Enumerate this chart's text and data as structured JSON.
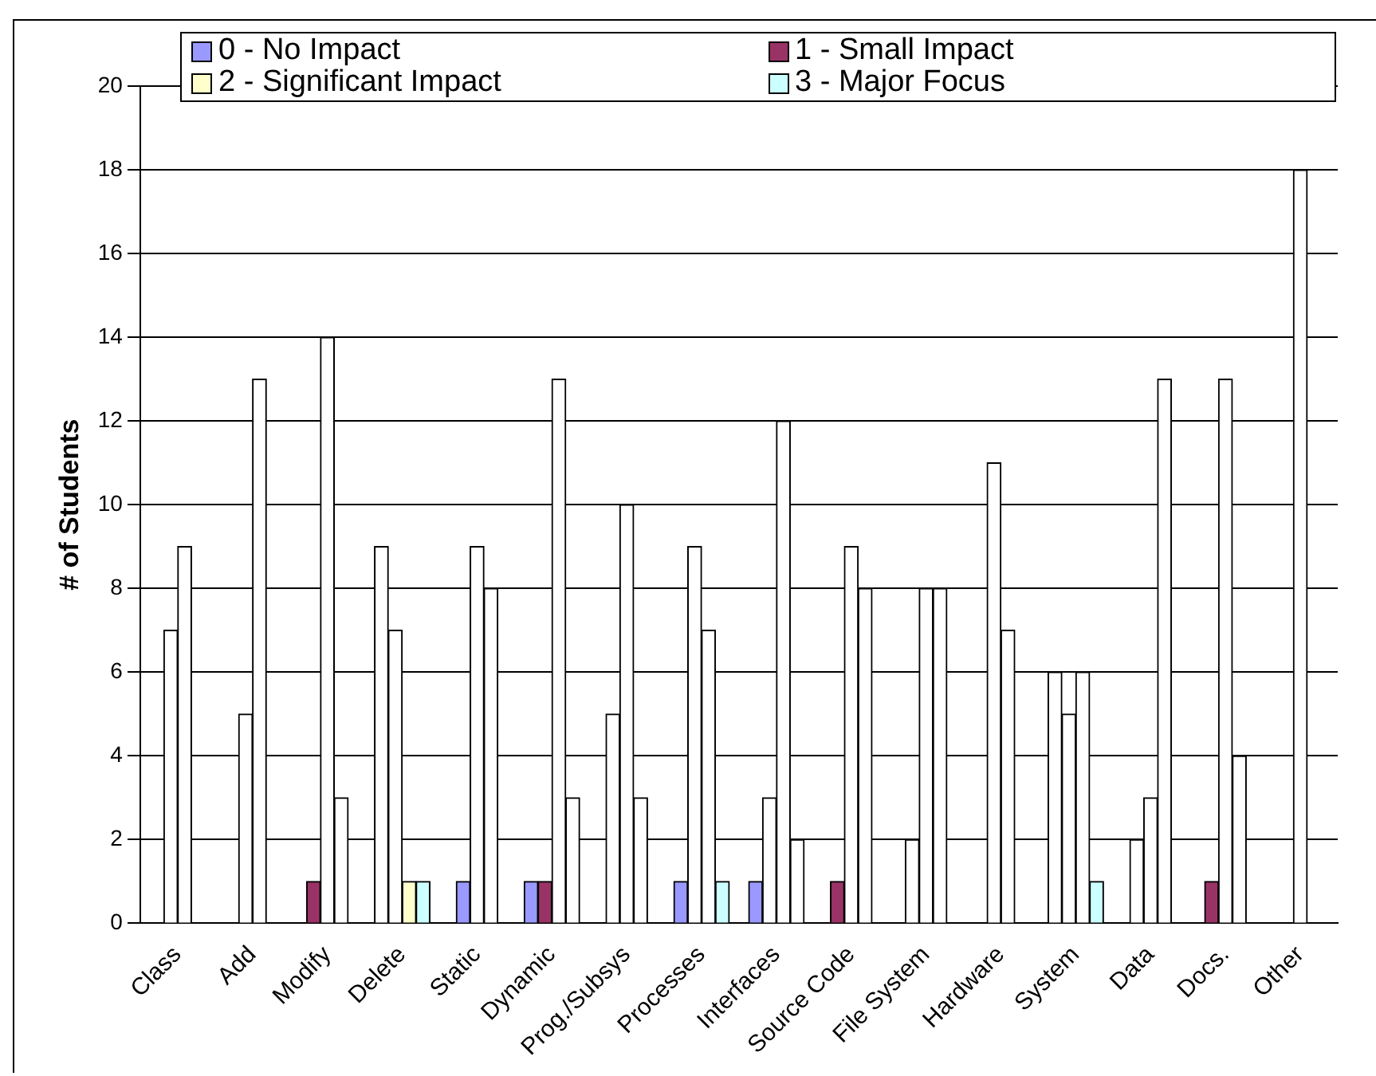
{
  "chart_data": {
    "type": "bar",
    "ylabel": "# of Students",
    "categories": [
      "Class",
      "Add",
      "Modify",
      "Delete",
      "Static",
      "Dynamic",
      "Prog./Subsys",
      "Processes",
      "Interfaces",
      "Source Code",
      "File System",
      "Hardware",
      "System",
      "Data",
      "Docs.",
      "Other"
    ],
    "series": [
      {
        "name": "0 - No Impact",
        "color": "#9999ff",
        "values": [
          null,
          null,
          null,
          null,
          1,
          1,
          null,
          1,
          1,
          null,
          null,
          null,
          null,
          null,
          null,
          null
        ]
      },
      {
        "name": "1 - Small Impact",
        "color": "#993366",
        "values": [
          null,
          null,
          1,
          null,
          null,
          1,
          null,
          null,
          null,
          1,
          null,
          null,
          null,
          null,
          1,
          null
        ]
      },
      {
        "color": "#ffffff",
        "values": [
          7,
          5,
          14,
          9,
          9,
          13,
          5,
          9,
          3,
          9,
          2,
          11,
          6,
          2,
          13,
          18
        ]
      },
      {
        "color": "#ffffff",
        "values": [
          9,
          13,
          3,
          7,
          8,
          3,
          10,
          7,
          12,
          8,
          8,
          7,
          5,
          3,
          4,
          null
        ]
      },
      {
        "color": "#ffffff",
        "values": [
          null,
          null,
          null,
          null,
          null,
          null,
          3,
          null,
          2,
          null,
          8,
          null,
          6,
          13,
          null,
          null
        ]
      },
      {
        "name": "2 - Significant Impact",
        "color": "#ffffcc",
        "values": [
          null,
          null,
          null,
          1,
          null,
          null,
          null,
          null,
          null,
          null,
          null,
          null,
          null,
          null,
          null,
          null
        ]
      },
      {
        "name": "3 - Major Focus",
        "color": "#ccffff",
        "values": [
          null,
          null,
          null,
          1,
          null,
          null,
          null,
          1,
          null,
          null,
          null,
          null,
          1,
          null,
          null,
          null
        ]
      }
    ],
    "ylim": [
      0,
      20
    ],
    "yticks": [
      0,
      2,
      4,
      6,
      8,
      10,
      12,
      14,
      16,
      18,
      20
    ],
    "grid": "y",
    "legend": "top"
  }
}
